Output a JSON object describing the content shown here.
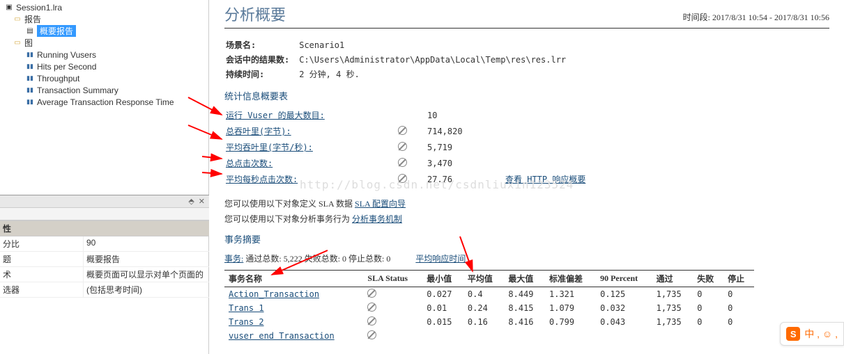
{
  "tree": {
    "session": "Session1.lra",
    "report_group": "报告",
    "summary_report": "概要报告",
    "graph_group": "图",
    "items": [
      "Running Vusers",
      "Hits per Second",
      "Throughput",
      "Transaction Summary",
      "Average Transaction Response Time"
    ]
  },
  "props": {
    "cat": "性",
    "rows": [
      {
        "k": "分比",
        "v": "90"
      },
      {
        "k": "题",
        "v": "概要报告"
      },
      {
        "k": "术",
        "v": "概要页面可以显示对单个页面的"
      },
      {
        "k": "选器",
        "v": "(包括思考时间)"
      }
    ]
  },
  "main": {
    "title": "分析概要",
    "period_label": "时间段:",
    "period": "2017/8/31 10:54 - 2017/8/31 10:56",
    "meta": [
      {
        "k": "场景名:",
        "v": "Scenario1"
      },
      {
        "k": "会话中的结果数:",
        "v": "C:\\Users\\Administrator\\AppData\\Local\\Temp\\res\\res.lrr"
      },
      {
        "k": "持续时间:",
        "v": "2 分钟, 4 秒."
      }
    ],
    "stats_title": "统计信息概要表",
    "stats": [
      {
        "label": "运行 Vuser 的最大数目:",
        "icon": false,
        "val": "10",
        "extra": null
      },
      {
        "label": "总吞叶里(字节):",
        "icon": true,
        "val": "714,820",
        "extra": null
      },
      {
        "label": "平均吞叶里(字节/秒):",
        "icon": true,
        "val": "5,719",
        "extra": null
      },
      {
        "label": "总点击次数:",
        "icon": true,
        "val": "3,470",
        "extra": null
      },
      {
        "label": "平均每秒点击次数:",
        "icon": true,
        "val": "27.76",
        "extra": "查看 HTTP 响应概要"
      }
    ],
    "sla1_pre": "您可以使用以下对象定义 SLA 数据",
    "sla1_link": "SLA 配置向导",
    "sla2_pre": "您可以使用以下对象分析事务行为",
    "sla2_link": "分析事务机制",
    "trans_title": "事务摘要",
    "trans_label": "事务:",
    "trans_pass_l": "通过总数:",
    "trans_pass": "5,222",
    "trans_fail_l": "失败总数:",
    "trans_fail": "0",
    "trans_stop_l": "停止总数:",
    "trans_stop": "0",
    "avg_resp": "平均响应时间",
    "cols": [
      "事务名称",
      "SLA Status",
      "最小值",
      "平均值",
      "最大值",
      "标准偏差",
      "90 Percent",
      "通过",
      "失败",
      "停止"
    ],
    "rows": [
      {
        "name": "Action_Transaction",
        "min": "0.027",
        "avg": "0.4",
        "max": "8.449",
        "sd": "1.321",
        "p90": "0.125",
        "pass": "1,735",
        "fail": "0",
        "stop": "0"
      },
      {
        "name": "Trans 1",
        "min": "0.01",
        "avg": "0.24",
        "max": "8.415",
        "sd": "1.079",
        "p90": "0.032",
        "pass": "1,735",
        "fail": "0",
        "stop": "0"
      },
      {
        "name": "Trans 2",
        "min": "0.015",
        "avg": "0.16",
        "max": "8.416",
        "sd": "0.799",
        "p90": "0.043",
        "pass": "1,735",
        "fail": "0",
        "stop": "0"
      },
      {
        "name": "vuser end Transaction",
        "min": "",
        "avg": "",
        "max": "",
        "sd": "",
        "p90": "",
        "pass": "",
        "fail": "",
        "stop": ""
      }
    ]
  },
  "watermark": "http://blog.csdn.net/csdnliuxin123524",
  "badge": {
    "s": "S",
    "txt": "中 , ☺ ,"
  },
  "colors": {
    "accent": "#1a4d7a",
    "title": "#5a7a9a",
    "arrow": "#ff0000",
    "selected_bg": "#3399ff"
  }
}
